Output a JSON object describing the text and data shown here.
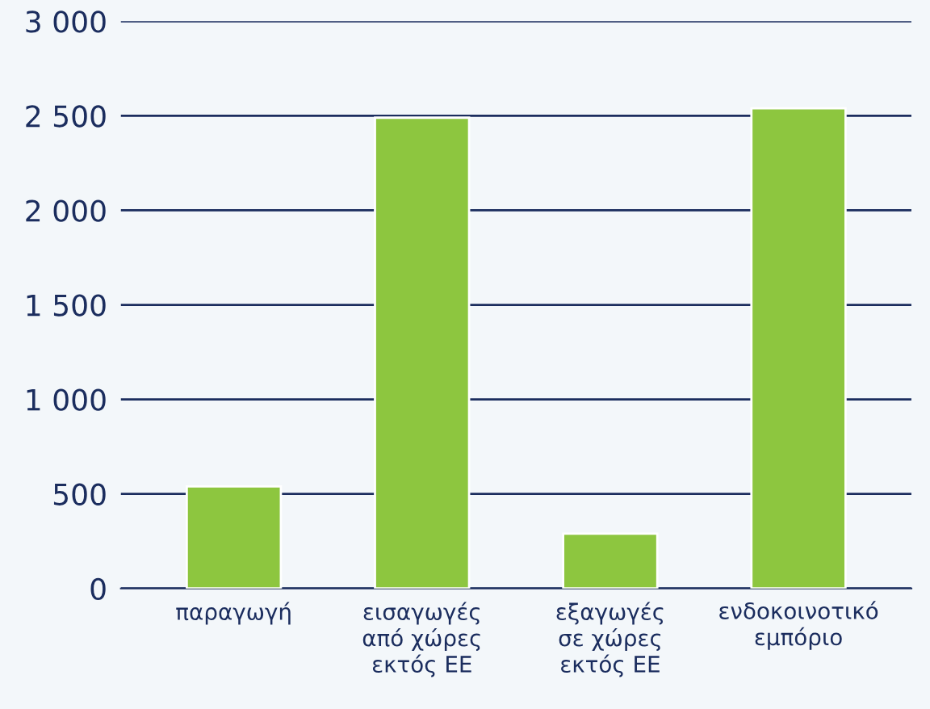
{
  "chart_data": {
    "type": "bar",
    "categories": [
      "παραγωγή",
      "εισαγωγές\nαπό χώρες\nεκτός ΕΕ",
      "εξαγωγές\nσε χώρες\nεκτός ΕΕ",
      "ενδοκοινοτικό\nεμπόριο"
    ],
    "values": [
      540,
      2490,
      290,
      2540
    ],
    "color": "#8dc63f",
    "ylim": [
      0,
      3000
    ],
    "yticks": [
      {
        "value": 0,
        "label": "0"
      },
      {
        "value": 500,
        "label": "500"
      },
      {
        "value": 1000,
        "label": "1 000"
      },
      {
        "value": 1500,
        "label": "1 500"
      },
      {
        "value": 2000,
        "label": "2 000"
      },
      {
        "value": 2500,
        "label": "2 500"
      },
      {
        "value": 3000,
        "label": "3 000"
      }
    ],
    "grid": "y"
  }
}
